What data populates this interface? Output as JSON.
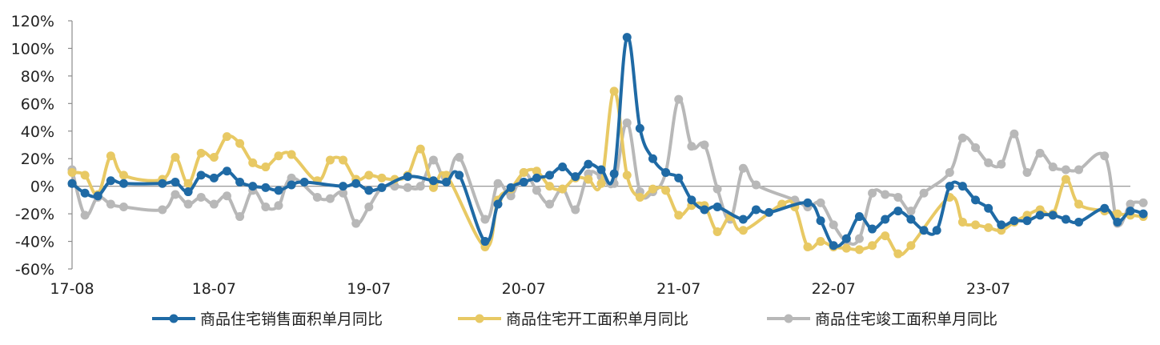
{
  "chart_data": {
    "type": "line",
    "title": "",
    "xlabel": "",
    "ylabel": "",
    "ylim": [
      -60,
      120
    ],
    "ytick_values": [
      -60,
      -40,
      -20,
      0,
      20,
      40,
      60,
      80,
      100,
      120
    ],
    "ytick_labels": [
      "-60%",
      "-40%",
      "-20%",
      "0%",
      "20%",
      "40%",
      "60%",
      "80%",
      "100%",
      "120%"
    ],
    "xtick_labels": [
      "17-08",
      "18-07",
      "19-07",
      "20-07",
      "21-07",
      "22-07",
      "23-07"
    ],
    "xtick_index": [
      0,
      11,
      23,
      35,
      47,
      59,
      71
    ],
    "x_count": 83,
    "grid": false,
    "legend_position": "bottom",
    "series": [
      {
        "name": "商品住宅销售面积单月同比",
        "color": "#1f6aa5",
        "values": [
          2,
          -5,
          -7,
          4,
          2,
          null,
          null,
          2,
          3,
          -4,
          8,
          6,
          11,
          3,
          0,
          -1,
          -3,
          1,
          3,
          null,
          null,
          0,
          2,
          -3,
          -1,
          null,
          7,
          null,
          4,
          3,
          8,
          null,
          -40,
          -13,
          -1,
          3,
          6,
          8,
          14,
          7,
          16,
          12,
          9,
          108,
          42,
          20,
          10,
          6,
          -10,
          -17,
          -15,
          null,
          -24,
          -17,
          -19,
          null,
          null,
          -12,
          -25,
          -43,
          -38,
          -22,
          -31,
          -24,
          -18,
          -24,
          -32,
          -32,
          0,
          0,
          -10,
          -16,
          -28,
          -25,
          -25,
          -21,
          -21,
          -24,
          -26,
          null,
          -16,
          -26,
          -18,
          -20
        ]
      },
      {
        "name": "商品住宅开工面积单月同比",
        "color": "#e8c964",
        "values": [
          10,
          8,
          -6,
          22,
          8,
          null,
          null,
          5,
          21,
          2,
          24,
          21,
          36,
          31,
          17,
          14,
          22,
          23,
          null,
          4,
          19,
          19,
          5,
          8,
          6,
          5,
          8,
          27,
          -1,
          8,
          null,
          null,
          -44,
          -10,
          -2,
          10,
          11,
          0,
          -2,
          6,
          5,
          2,
          69,
          8,
          -8,
          -2,
          -3,
          -21,
          -14,
          -14,
          -33,
          -22,
          -32,
          null,
          null,
          -13,
          -15,
          -44,
          -40,
          -44,
          -45,
          -46,
          -43,
          -36,
          -49,
          -43,
          null,
          null,
          -8,
          -26,
          -28,
          -30,
          -32,
          -26,
          -21,
          -17,
          -20,
          5,
          -13,
          null,
          -18,
          -20,
          -21,
          -22
        ]
      },
      {
        "name": "商品住宅竣工面积单月同比",
        "color": "#b8b8b8",
        "values": [
          12,
          -21,
          -8,
          -13,
          -15,
          null,
          null,
          -17,
          -6,
          -13,
          -8,
          -13,
          -7,
          -22,
          -3,
          -15,
          -14,
          6,
          null,
          -8,
          -9,
          -5,
          -27,
          -15,
          -1,
          0,
          -1,
          0,
          19,
          3,
          21,
          null,
          -24,
          2,
          -7,
          10,
          -3,
          -13,
          -2,
          -17,
          9,
          7,
          2,
          46,
          -4,
          -4,
          10,
          63,
          29,
          30,
          -2,
          -24,
          13,
          1,
          null,
          null,
          -10,
          -15,
          -12,
          -28,
          -40,
          -38,
          -5,
          -6,
          -8,
          -18,
          -5,
          null,
          10,
          35,
          28,
          17,
          16,
          38,
          10,
          24,
          14,
          12,
          12,
          null,
          22,
          -27,
          -13,
          -12
        ]
      }
    ]
  }
}
